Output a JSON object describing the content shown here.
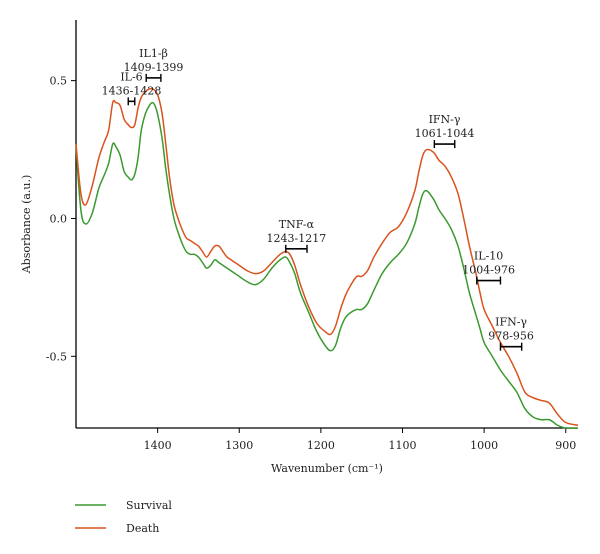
{
  "chart_data": {
    "type": "line",
    "xlabel": "Wavenumber (cm⁻¹)",
    "ylabel": "Absorbance (a.u.)",
    "xlim": [
      1500,
      885
    ],
    "ylim": [
      -0.76,
      0.72
    ],
    "x_reversed": true,
    "grid": false,
    "legend_position": "bottom-left",
    "x_ticks": [
      {
        "value": 1400,
        "label": "1400"
      },
      {
        "value": 1300,
        "label": "1300"
      },
      {
        "value": 1200,
        "label": "1200"
      },
      {
        "value": 1100,
        "label": "1100"
      },
      {
        "value": 1000,
        "label": "1000"
      },
      {
        "value": 900,
        "label": "900"
      }
    ],
    "y_ticks": [
      {
        "value": 0.5,
        "label": "0.5"
      },
      {
        "value": 0.0,
        "label": "0.0"
      },
      {
        "value": -0.5,
        "label": "-0.5"
      }
    ],
    "colors": {
      "Survival": "#3a9a2e",
      "Death": "#d9531e"
    },
    "series": [
      {
        "name": "Survival",
        "x": [
          1500,
          1494,
          1488,
          1480,
          1472,
          1465,
          1460,
          1455,
          1451,
          1446,
          1441,
          1436,
          1432,
          1428,
          1424,
          1420,
          1415,
          1410,
          1406,
          1402,
          1398,
          1394,
          1390,
          1385,
          1380,
          1375,
          1370,
          1365,
          1360,
          1355,
          1350,
          1345,
          1340,
          1335,
          1330,
          1325,
          1320,
          1315,
          1310,
          1305,
          1300,
          1290,
          1280,
          1270,
          1260,
          1250,
          1243,
          1238,
          1232,
          1225,
          1215,
          1205,
          1195,
          1188,
          1182,
          1176,
          1170,
          1163,
          1156,
          1150,
          1143,
          1135,
          1125,
          1115,
          1105,
          1095,
          1085,
          1080,
          1075,
          1070,
          1062,
          1055,
          1048,
          1040,
          1032,
          1025,
          1018,
          1010,
          1005,
          1000,
          990,
          980,
          970,
          960,
          950,
          940,
          930,
          920,
          910,
          900,
          885
        ],
        "values": [
          0.26,
          0.03,
          -0.02,
          0.02,
          0.11,
          0.16,
          0.2,
          0.27,
          0.26,
          0.23,
          0.17,
          0.15,
          0.14,
          0.16,
          0.22,
          0.32,
          0.38,
          0.41,
          0.42,
          0.4,
          0.35,
          0.28,
          0.18,
          0.08,
          0.0,
          -0.05,
          -0.09,
          -0.12,
          -0.13,
          -0.13,
          -0.14,
          -0.16,
          -0.18,
          -0.17,
          -0.15,
          -0.16,
          -0.17,
          -0.18,
          -0.19,
          -0.2,
          -0.21,
          -0.23,
          -0.24,
          -0.22,
          -0.18,
          -0.15,
          -0.14,
          -0.16,
          -0.2,
          -0.27,
          -0.34,
          -0.41,
          -0.46,
          -0.48,
          -0.46,
          -0.4,
          -0.36,
          -0.34,
          -0.33,
          -0.33,
          -0.31,
          -0.26,
          -0.2,
          -0.16,
          -0.13,
          -0.09,
          -0.02,
          0.04,
          0.09,
          0.1,
          0.07,
          0.03,
          0.0,
          -0.04,
          -0.1,
          -0.18,
          -0.27,
          -0.35,
          -0.4,
          -0.45,
          -0.5,
          -0.55,
          -0.59,
          -0.63,
          -0.69,
          -0.72,
          -0.73,
          -0.73,
          -0.75,
          -0.76,
          -0.76
        ]
      },
      {
        "name": "Death",
        "x": [
          1500,
          1494,
          1488,
          1480,
          1472,
          1465,
          1460,
          1455,
          1451,
          1446,
          1441,
          1436,
          1432,
          1428,
          1424,
          1420,
          1415,
          1410,
          1406,
          1402,
          1398,
          1394,
          1390,
          1385,
          1380,
          1375,
          1370,
          1365,
          1360,
          1355,
          1350,
          1345,
          1340,
          1335,
          1330,
          1325,
          1320,
          1315,
          1310,
          1305,
          1300,
          1290,
          1280,
          1270,
          1260,
          1250,
          1243,
          1238,
          1232,
          1225,
          1215,
          1205,
          1195,
          1188,
          1182,
          1176,
          1170,
          1163,
          1156,
          1150,
          1143,
          1135,
          1125,
          1115,
          1105,
          1095,
          1085,
          1080,
          1075,
          1070,
          1062,
          1055,
          1048,
          1040,
          1032,
          1025,
          1018,
          1010,
          1005,
          1000,
          990,
          980,
          970,
          960,
          950,
          940,
          930,
          920,
          910,
          900,
          885
        ],
        "values": [
          0.27,
          0.09,
          0.05,
          0.12,
          0.22,
          0.28,
          0.32,
          0.42,
          0.42,
          0.41,
          0.36,
          0.34,
          0.33,
          0.34,
          0.4,
          0.44,
          0.46,
          0.47,
          0.47,
          0.46,
          0.43,
          0.37,
          0.27,
          0.14,
          0.05,
          0.0,
          -0.04,
          -0.07,
          -0.08,
          -0.09,
          -0.1,
          -0.12,
          -0.14,
          -0.12,
          -0.1,
          -0.1,
          -0.12,
          -0.14,
          -0.15,
          -0.16,
          -0.17,
          -0.19,
          -0.2,
          -0.19,
          -0.16,
          -0.13,
          -0.12,
          -0.13,
          -0.17,
          -0.24,
          -0.32,
          -0.38,
          -0.41,
          -0.42,
          -0.39,
          -0.33,
          -0.28,
          -0.24,
          -0.21,
          -0.21,
          -0.19,
          -0.14,
          -0.09,
          -0.05,
          -0.03,
          0.02,
          0.1,
          0.17,
          0.23,
          0.25,
          0.24,
          0.21,
          0.19,
          0.15,
          0.09,
          0.0,
          -0.1,
          -0.2,
          -0.27,
          -0.33,
          -0.39,
          -0.45,
          -0.5,
          -0.56,
          -0.63,
          -0.65,
          -0.66,
          -0.67,
          -0.71,
          -0.74,
          -0.75
        ]
      }
    ],
    "annotations": [
      {
        "label": "IL-6",
        "range": "1436-1428",
        "x1": 1436,
        "x2": 1428,
        "y": 0.425
      },
      {
        "label": "IL1-β",
        "range": "1409-1399",
        "x1": 1414,
        "x2": 1396,
        "y": 0.51
      },
      {
        "label": "TNF-α",
        "range": "1243-1217",
        "x1": 1243,
        "x2": 1217,
        "y": -0.11
      },
      {
        "label": "IFN-γ",
        "range": "1061-1044",
        "x1": 1061,
        "x2": 1036,
        "y": 0.27
      },
      {
        "label": "IL-10",
        "range": "1004-976",
        "x1": 1009,
        "x2": 980,
        "y": -0.225
      },
      {
        "label": "IFN-γ",
        "range": "978-956",
        "x1": 980,
        "x2": 954,
        "y": -0.465
      }
    ],
    "legend": [
      "Survival",
      "Death"
    ]
  }
}
